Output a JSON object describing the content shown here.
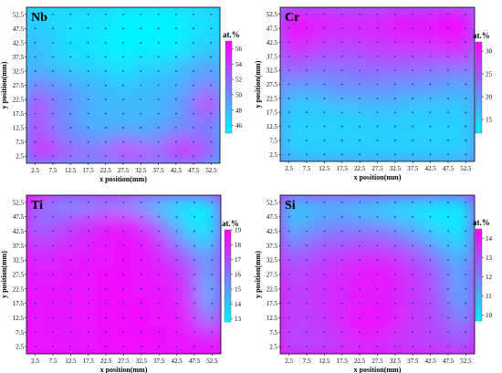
{
  "chart_data": [
    {
      "type": "heatmap",
      "element": "Nb",
      "xlabel": "x position(mm)",
      "ylabel": "y position(mm)",
      "x_ticks": [
        "2.5",
        "7.5",
        "12.5",
        "17.5",
        "22.5",
        "27.5",
        "32.5",
        "37.5",
        "42.5",
        "47.5",
        "52.5"
      ],
      "y_ticks": [
        "2.5",
        "7.5",
        "12.5",
        "17.5",
        "22.5",
        "27.5",
        "32.5",
        "37.5",
        "42.5",
        "47.5",
        "52.5"
      ],
      "colorbar_title": "at.%",
      "colorbar_ticks": [
        46,
        48,
        50,
        52,
        54,
        56
      ],
      "zlim": [
        45,
        57
      ],
      "rows_bottom_to_top": [
        [
          56,
          55,
          54,
          53,
          54,
          56,
          56,
          54,
          55,
          56,
          53
        ],
        [
          55,
          53,
          51,
          50,
          50,
          52,
          51,
          50,
          54,
          53,
          52
        ],
        [
          54,
          51,
          50,
          49,
          48,
          49,
          48,
          49,
          50,
          50,
          51
        ],
        [
          55,
          51,
          50,
          48,
          48,
          48,
          48,
          48,
          49,
          51,
          53
        ],
        [
          54,
          51,
          50,
          49,
          48,
          48,
          48,
          48,
          49,
          51,
          56
        ],
        [
          51,
          50,
          49,
          48,
          48,
          47,
          48,
          48,
          48,
          49,
          51
        ],
        [
          49,
          48,
          48,
          47,
          47,
          46,
          47,
          47,
          48,
          49,
          50
        ],
        [
          48,
          47,
          46,
          46,
          46,
          45,
          46,
          46,
          46,
          47,
          48
        ],
        [
          48,
          47,
          46,
          46,
          45,
          45,
          45,
          45,
          45,
          46,
          47
        ],
        [
          47,
          47,
          46,
          46,
          46,
          45,
          45,
          45,
          45,
          46,
          46
        ],
        [
          47,
          46,
          46,
          46,
          46,
          45,
          45,
          45,
          45,
          46,
          46
        ]
      ]
    },
    {
      "type": "heatmap",
      "element": "Cr",
      "xlabel": "x position(mm)",
      "ylabel": "y position(mm)",
      "x_ticks": [
        "2.5",
        "7.5",
        "12.5",
        "17.5",
        "22.5",
        "27.5",
        "32.5",
        "37.5",
        "42.5",
        "47.5",
        "52.5"
      ],
      "y_ticks": [
        "2.5",
        "7.5",
        "12.5",
        "17.5",
        "22.5",
        "27.5",
        "32.5",
        "37.5",
        "42.5",
        "47.5",
        "52.5"
      ],
      "colorbar_title": "at.%",
      "colorbar_ticks": [
        15,
        20,
        25,
        30
      ],
      "zlim": [
        12,
        32
      ],
      "rows_bottom_to_top": [
        [
          15,
          15,
          15,
          15,
          15,
          15,
          15,
          15,
          15,
          15,
          15
        ],
        [
          15,
          15,
          15,
          15,
          15,
          15,
          15,
          15,
          15,
          15,
          15
        ],
        [
          15,
          15,
          15,
          15,
          15,
          15,
          15,
          15,
          15,
          15,
          15
        ],
        [
          15,
          15,
          15,
          15,
          15,
          16,
          16,
          15,
          15,
          15,
          15
        ],
        [
          16,
          16,
          17,
          18,
          18,
          18,
          18,
          17,
          17,
          17,
          16
        ],
        [
          20,
          19,
          20,
          21,
          21,
          21,
          20,
          20,
          20,
          19,
          18
        ],
        [
          24,
          23,
          22,
          22,
          23,
          23,
          23,
          23,
          22,
          22,
          22
        ],
        [
          27,
          26,
          25,
          25,
          25,
          26,
          26,
          26,
          26,
          26,
          27
        ],
        [
          30,
          29,
          27,
          27,
          27,
          28,
          28,
          29,
          29,
          30,
          30
        ],
        [
          31,
          30,
          29,
          29,
          29,
          29,
          30,
          30,
          30,
          31,
          31
        ],
        [
          31,
          30,
          30,
          29,
          29,
          29,
          30,
          30,
          30,
          31,
          31
        ]
      ]
    },
    {
      "type": "heatmap",
      "element": "Ti",
      "xlabel": "x position(mm)",
      "ylabel": "y position(mm)",
      "x_ticks": [
        "2.5",
        "7.5",
        "12.5",
        "17.5",
        "22.5",
        "27.5",
        "32.5",
        "37.5",
        "42.5",
        "47.5",
        "52.5"
      ],
      "y_ticks": [
        "2.5",
        "7.5",
        "12.5",
        "17.5",
        "22.5",
        "27.5",
        "32.5",
        "37.5",
        "42.5",
        "47.5",
        "52.5"
      ],
      "colorbar_title": "at.%",
      "colorbar_ticks": [
        13,
        14,
        15,
        16,
        17,
        18,
        19
      ],
      "zlim": [
        12.8,
        19
      ],
      "rows_bottom_to_top": [
        [
          18.5,
          18.4,
          18.4,
          18.4,
          18.5,
          18.6,
          18.6,
          18.6,
          18.5,
          18.4,
          18.3
        ],
        [
          18.5,
          18.4,
          18.4,
          18.5,
          18.6,
          18.6,
          18.6,
          18.6,
          18.5,
          18.3,
          17.8
        ],
        [
          18.5,
          18.4,
          18.4,
          18.5,
          18.6,
          18.6,
          18.6,
          18.5,
          18.8,
          17.5,
          15.5
        ],
        [
          18.4,
          18.4,
          18.4,
          18.5,
          18.6,
          18.6,
          18.6,
          18.5,
          18.3,
          17.5,
          14.5
        ],
        [
          18.3,
          18.4,
          18.4,
          18.5,
          18.6,
          18.6,
          18.5,
          18.4,
          18.2,
          17.0,
          14.0
        ],
        [
          18.3,
          18.3,
          18.4,
          18.5,
          18.6,
          18.6,
          18.5,
          18.3,
          18.0,
          17.0,
          14.5
        ],
        [
          18.0,
          18.2,
          18.3,
          18.4,
          18.5,
          18.6,
          18.5,
          18.2,
          17.5,
          16.5,
          15.0
        ],
        [
          17.5,
          17.8,
          18.0,
          18.2,
          18.5,
          18.6,
          18.4,
          18.0,
          16.5,
          15.0,
          14.0
        ],
        [
          16.5,
          17.0,
          17.5,
          18.0,
          18.4,
          18.5,
          18.2,
          17.2,
          15.0,
          13.5,
          13.0
        ],
        [
          16.0,
          16.5,
          17.0,
          17.5,
          18.0,
          18.2,
          17.5,
          15.5,
          14.0,
          13.0,
          13.0
        ],
        [
          17.5,
          15.5,
          15.0,
          15.0,
          15.5,
          15.0,
          14.5,
          13.5,
          13.0,
          13.0,
          13.0
        ]
      ]
    },
    {
      "type": "heatmap",
      "element": "Si",
      "xlabel": "x position(mm)",
      "ylabel": "y position(mm)",
      "x_ticks": [
        "2.5",
        "7.5",
        "12.5",
        "17.5",
        "22.5",
        "27.5",
        "32.5",
        "37.5",
        "42.5",
        "47.5",
        "52.5"
      ],
      "y_ticks": [
        "2.5",
        "7.5",
        "12.5",
        "17.5",
        "22.5",
        "27.5",
        "32.5",
        "37.5",
        "42.5",
        "47.5",
        "52.5"
      ],
      "colorbar_title": "at.%",
      "colorbar_ticks": [
        10,
        11,
        12,
        13,
        14
      ],
      "zlim": [
        9.7,
        14.5
      ],
      "rows_bottom_to_top": [
        [
          13.0,
          13.0,
          13.1,
          13.3,
          13.6,
          13.5,
          13.3,
          13.2,
          13.2,
          13.0,
          12.6
        ],
        [
          13.2,
          13.2,
          13.3,
          13.5,
          14.2,
          14.1,
          13.6,
          13.4,
          13.2,
          12.9,
          12.4
        ],
        [
          13.2,
          13.3,
          13.5,
          13.8,
          14.3,
          14.2,
          14.1,
          13.4,
          13.2,
          12.6,
          11.7
        ],
        [
          13.2,
          13.3,
          13.5,
          13.7,
          14.0,
          13.9,
          13.8,
          13.4,
          13.1,
          12.3,
          11.2
        ],
        [
          13.3,
          13.3,
          13.6,
          13.8,
          14.0,
          14.0,
          13.9,
          13.5,
          13.2,
          12.0,
          10.9
        ],
        [
          13.0,
          13.3,
          13.5,
          13.7,
          14.1,
          14.2,
          14.0,
          13.4,
          13.0,
          12.0,
          11.2
        ],
        [
          12.7,
          13.0,
          13.3,
          13.5,
          13.8,
          13.9,
          13.7,
          13.2,
          12.6,
          11.7,
          11.0
        ],
        [
          12.0,
          12.5,
          12.9,
          13.0,
          13.1,
          13.1,
          12.9,
          12.5,
          11.8,
          10.8,
          10.3
        ],
        [
          11.0,
          11.7,
          12.0,
          12.2,
          12.3,
          12.3,
          12.0,
          11.4,
          10.7,
          10.2,
          10.0
        ],
        [
          10.6,
          11.0,
          11.3,
          11.5,
          11.3,
          11.0,
          10.8,
          10.4,
          10.0,
          9.9,
          9.9
        ],
        [
          10.3,
          10.6,
          10.8,
          10.7,
          10.5,
          10.3,
          10.1,
          10.0,
          9.9,
          9.8,
          9.8
        ]
      ]
    }
  ]
}
